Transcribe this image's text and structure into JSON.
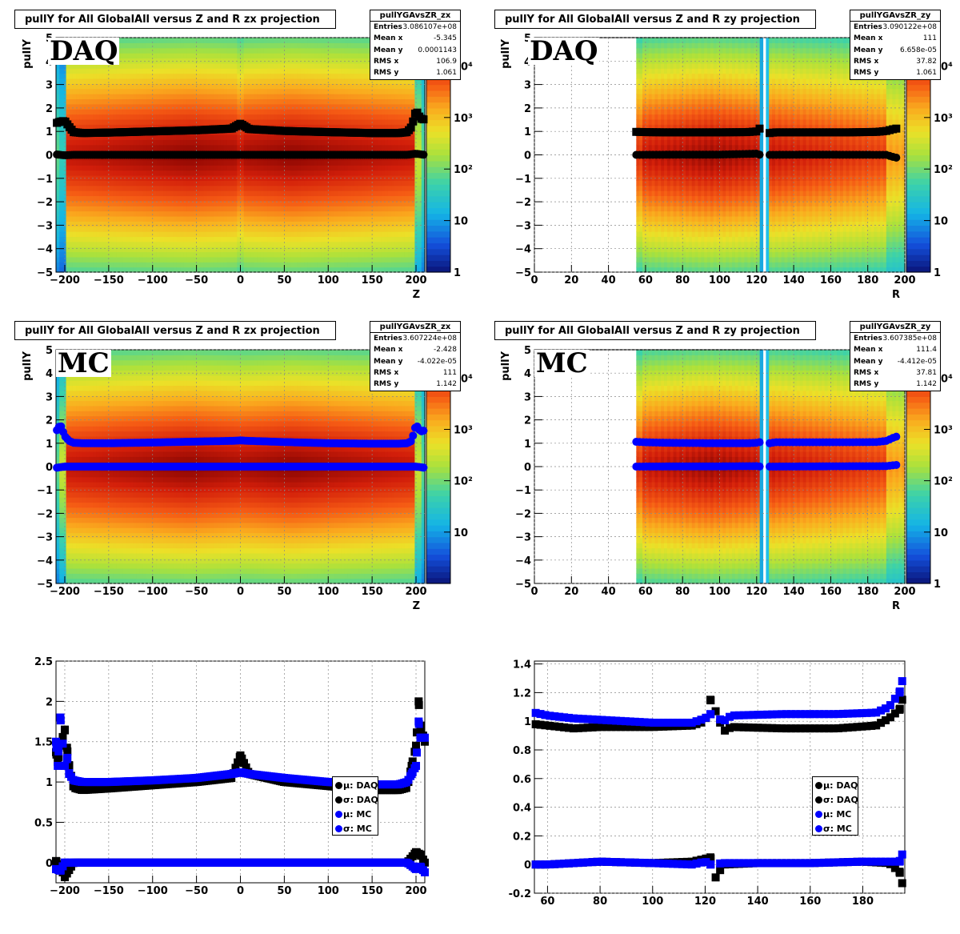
{
  "panels": {
    "p1": {
      "title": "pullY for All GlobalAll versus Z and R zx projection",
      "stats": {
        "name": "pullYGAvsZR_zx",
        "rows": [
          [
            "Entries",
            "3.086107e+08"
          ],
          [
            "Mean x",
            "-5.345"
          ],
          [
            "Mean y",
            "0.0001143"
          ],
          [
            "RMS x",
            "106.9"
          ],
          [
            "RMS y",
            "1.061"
          ]
        ]
      },
      "tag": "DAQ",
      "ylabel": "pullY",
      "xlabel": "Z"
    },
    "p2": {
      "title": "pullY for All GlobalAll versus Z and R zy projection",
      "stats": {
        "name": "pullYGAvsZR_zy",
        "rows": [
          [
            "Entries",
            "3.090122e+08"
          ],
          [
            "Mean x",
            "111"
          ],
          [
            "Mean y",
            "6.658e-05"
          ],
          [
            "RMS x",
            "37.82"
          ],
          [
            "RMS y",
            "1.061"
          ]
        ]
      },
      "tag": "DAQ",
      "ylabel": "pullY",
      "xlabel": "R"
    },
    "p3": {
      "title": "pullY for All GlobalAll versus Z and R zx projection",
      "stats": {
        "name": "pullYGAvsZR_zx",
        "rows": [
          [
            "Entries",
            "3.607224e+08"
          ],
          [
            "Mean x",
            "-2.428"
          ],
          [
            "Mean y",
            "-4.022e-05"
          ],
          [
            "RMS x",
            "111"
          ],
          [
            "RMS y",
            "1.142"
          ]
        ]
      },
      "tag": "MC",
      "ylabel": "pullY",
      "xlabel": "Z"
    },
    "p4": {
      "title": "pullY for All GlobalAll versus Z and R zy projection",
      "stats": {
        "name": "pullYGAvsZR_zy",
        "rows": [
          [
            "Entries",
            "3.607385e+08"
          ],
          [
            "Mean x",
            "111.4"
          ],
          [
            "Mean y",
            "-4.412e-05"
          ],
          [
            "RMS x",
            "37.81"
          ],
          [
            "RMS y",
            "1.142"
          ]
        ]
      },
      "tag": "MC",
      "ylabel": "pullY",
      "xlabel": "R"
    }
  },
  "legend": [
    "μ: DAQ",
    "σ: DAQ",
    "μ: MC",
    "σ: MC"
  ],
  "colors": {
    "daq": "#000000",
    "mc": "#0000ff"
  },
  "chart_data": [
    {
      "type": "heatmap",
      "id": "p1",
      "title": "pullY for All GlobalAll versus Z and R zx projection",
      "xlabel": "Z",
      "ylabel": "pullY",
      "xlim": [
        -210,
        210
      ],
      "ylim": [
        -5,
        5
      ],
      "x_ticks": [
        -200,
        -150,
        -100,
        -50,
        0,
        50,
        100,
        150,
        200
      ],
      "y_ticks": [
        -5,
        -4,
        -3,
        -2,
        -1,
        0,
        1,
        2,
        3,
        4,
        5
      ],
      "colorbar": {
        "scale": "log",
        "ticks": [
          "1",
          "10",
          "10²",
          "10³",
          "10⁴"
        ]
      },
      "sigma_x": [
        -210,
        -205,
        -200,
        -195,
        -190,
        -180,
        -150,
        -100,
        -50,
        -10,
        0,
        10,
        50,
        100,
        150,
        180,
        190,
        195,
        200,
        205,
        210
      ],
      "sigma_y": [
        1.35,
        1.42,
        1.45,
        1.2,
        0.97,
        0.93,
        0.95,
        1.0,
        1.05,
        1.12,
        1.33,
        1.1,
        1.02,
        0.97,
        0.93,
        0.93,
        0.97,
        1.2,
        1.9,
        1.55,
        1.5
      ],
      "mu_x": [
        -210,
        -200,
        -190,
        -100,
        0,
        100,
        190,
        200,
        210
      ],
      "mu_y": [
        0.02,
        -0.02,
        0.0,
        0.0,
        0.0,
        0.0,
        0.0,
        0.05,
        0.0
      ]
    },
    {
      "type": "heatmap",
      "id": "p2",
      "title": "pullY for All GlobalAll versus Z and R zy projection",
      "xlabel": "R",
      "ylabel": "pullY",
      "xlim": [
        0,
        200
      ],
      "ylim": [
        -5,
        5
      ],
      "x_ticks": [
        0,
        20,
        40,
        60,
        80,
        100,
        120,
        140,
        160,
        180,
        200
      ],
      "y_ticks": [
        -5,
        -4,
        -3,
        -2,
        -1,
        0,
        1,
        2,
        3,
        4,
        5
      ],
      "colorbar": {
        "scale": "log",
        "ticks": [
          "1",
          "10",
          "10²",
          "10³",
          "10⁴"
        ]
      },
      "sigma_x": [
        55,
        60,
        70,
        80,
        100,
        115,
        120,
        122,
        127,
        130,
        150,
        170,
        185,
        190,
        195
      ],
      "sigma_y": [
        0.98,
        0.97,
        0.96,
        0.96,
        0.96,
        0.97,
        1.0,
        1.15,
        0.93,
        0.96,
        0.96,
        0.96,
        0.98,
        1.02,
        1.12
      ],
      "mu_x": [
        55,
        80,
        100,
        120,
        122,
        127,
        150,
        190,
        195
      ],
      "mu_y": [
        0.0,
        0.01,
        0.01,
        0.05,
        0.0,
        0.0,
        0.01,
        0.0,
        -0.12
      ]
    },
    {
      "type": "heatmap",
      "id": "p3",
      "title": "pullY for All GlobalAll versus Z and R zx projection",
      "xlabel": "Z",
      "ylabel": "pullY",
      "xlim": [
        -210,
        210
      ],
      "ylim": [
        -5,
        5
      ],
      "x_ticks": [
        -200,
        -150,
        -100,
        -50,
        0,
        50,
        100,
        150,
        200
      ],
      "y_ticks": [
        -5,
        -4,
        -3,
        -2,
        -1,
        0,
        1,
        2,
        3,
        4,
        5
      ],
      "colorbar": {
        "scale": "log",
        "ticks": [
          "10",
          "10²",
          "10³",
          "10⁴"
        ]
      },
      "sigma_x": [
        -210,
        -205,
        -200,
        -195,
        -190,
        -180,
        -150,
        -100,
        -50,
        -10,
        0,
        10,
        50,
        100,
        150,
        180,
        190,
        195,
        200,
        205,
        210
      ],
      "sigma_y": [
        1.5,
        1.8,
        1.3,
        1.1,
        1.02,
        1.0,
        1.0,
        1.03,
        1.07,
        1.1,
        1.12,
        1.1,
        1.05,
        1.0,
        0.98,
        0.98,
        1.0,
        1.1,
        1.8,
        1.5,
        1.55
      ],
      "mu_x": [
        -210,
        -200,
        -190,
        -100,
        0,
        100,
        190,
        200,
        210
      ],
      "mu_y": [
        -0.05,
        0.0,
        0.0,
        0.0,
        0.0,
        0.0,
        0.0,
        0.0,
        -0.05
      ]
    },
    {
      "type": "heatmap",
      "id": "p4",
      "title": "pullY for All GlobalAll versus Z and R zy projection",
      "xlabel": "R",
      "ylabel": "pullY",
      "xlim": [
        0,
        200
      ],
      "ylim": [
        -5,
        5
      ],
      "x_ticks": [
        0,
        20,
        40,
        60,
        80,
        100,
        120,
        140,
        160,
        180,
        200
      ],
      "y_ticks": [
        -5,
        -4,
        -3,
        -2,
        -1,
        0,
        1,
        2,
        3,
        4,
        5
      ],
      "colorbar": {
        "scale": "log",
        "ticks": [
          "1",
          "10",
          "10²",
          "10³",
          "10⁴"
        ]
      },
      "sigma_x": [
        55,
        60,
        70,
        80,
        100,
        115,
        120,
        122,
        127,
        130,
        150,
        170,
        185,
        190,
        195
      ],
      "sigma_y": [
        1.06,
        1.04,
        1.02,
        1.01,
        1.0,
        1.0,
        1.02,
        1.05,
        1.0,
        1.04,
        1.04,
        1.04,
        1.05,
        1.1,
        1.28
      ],
      "mu_x": [
        55,
        80,
        100,
        120,
        122,
        127,
        150,
        190,
        195
      ],
      "mu_y": [
        0.0,
        0.01,
        0.01,
        0.02,
        0.0,
        0.0,
        0.01,
        0.02,
        0.07
      ]
    },
    {
      "type": "scatter",
      "id": "p5",
      "xlim": [
        -210,
        210
      ],
      "ylim": [
        -0.25,
        2.5
      ],
      "x_ticks": [
        -200,
        -150,
        -100,
        -50,
        0,
        50,
        100,
        150,
        200
      ],
      "y_ticks": [
        0,
        0.5,
        1,
        1.5,
        2,
        2.5
      ],
      "series": [
        {
          "name": "μ: DAQ",
          "x": [
            -210,
            -205,
            -200,
            -190,
            -100,
            0,
            100,
            190,
            200,
            205,
            210
          ],
          "y": [
            0.02,
            -0.05,
            -0.18,
            0.0,
            0.0,
            0.0,
            0.0,
            0.0,
            0.13,
            0.1,
            0.0
          ]
        },
        {
          "name": "σ: DAQ",
          "x": [
            -210,
            -208,
            -205,
            -200,
            -197,
            -195,
            -190,
            -180,
            -150,
            -100,
            -50,
            -10,
            0,
            10,
            50,
            100,
            150,
            180,
            190,
            195,
            200,
            203,
            205,
            210
          ],
          "y": [
            1.37,
            1.25,
            1.45,
            1.65,
            1.38,
            1.2,
            0.93,
            0.9,
            0.92,
            0.96,
            1.0,
            1.05,
            1.33,
            1.1,
            1.0,
            0.95,
            0.9,
            0.9,
            0.93,
            1.2,
            1.45,
            2.0,
            1.7,
            1.5
          ]
        },
        {
          "name": "μ: MC",
          "x": [
            -210,
            -205,
            -200,
            -190,
            -100,
            0,
            100,
            190,
            200,
            205,
            210
          ],
          "y": [
            -0.08,
            -0.1,
            0.0,
            0.0,
            0.0,
            0.0,
            0.0,
            0.0,
            -0.08,
            -0.05,
            -0.12
          ]
        },
        {
          "name": "σ: MC",
          "x": [
            -210,
            -208,
            -205,
            -200,
            -197,
            -195,
            -190,
            -180,
            -150,
            -100,
            -50,
            -10,
            0,
            10,
            50,
            100,
            150,
            180,
            190,
            195,
            200,
            203,
            205,
            210
          ],
          "y": [
            1.5,
            1.2,
            1.8,
            1.2,
            1.3,
            1.1,
            1.02,
            1.0,
            1.0,
            1.02,
            1.05,
            1.1,
            1.12,
            1.1,
            1.05,
            1.0,
            0.97,
            0.97,
            1.0,
            1.1,
            1.2,
            1.75,
            1.55,
            1.55
          ]
        }
      ]
    },
    {
      "type": "scatter",
      "id": "p6",
      "xlim": [
        55,
        196
      ],
      "ylim": [
        -0.2,
        1.42
      ],
      "x_ticks": [
        60,
        80,
        100,
        120,
        140,
        160,
        180
      ],
      "y_ticks": [
        -0.2,
        0,
        0.2,
        0.4,
        0.6,
        0.8,
        1,
        1.2,
        1.4
      ],
      "series": [
        {
          "name": "μ: DAQ",
          "x": [
            55,
            60,
            80,
            100,
            115,
            120,
            122,
            124,
            127,
            140,
            160,
            180,
            190,
            194,
            195
          ],
          "y": [
            0.0,
            0.0,
            0.02,
            0.01,
            0.02,
            0.04,
            0.05,
            -0.09,
            0.0,
            0.01,
            0.01,
            0.02,
            0.01,
            -0.05,
            -0.13
          ]
        },
        {
          "name": "σ: DAQ",
          "x": [
            55,
            60,
            70,
            80,
            100,
            115,
            120,
            122,
            124,
            127,
            130,
            150,
            170,
            185,
            190,
            194,
            195
          ],
          "y": [
            0.98,
            0.97,
            0.95,
            0.96,
            0.96,
            0.97,
            1.0,
            1.15,
            1.07,
            0.93,
            0.96,
            0.95,
            0.95,
            0.97,
            1.02,
            1.08,
            1.15
          ]
        },
        {
          "name": "μ: MC",
          "x": [
            55,
            60,
            80,
            100,
            115,
            120,
            122,
            127,
            140,
            160,
            180,
            190,
            194,
            195
          ],
          "y": [
            0.0,
            0.0,
            0.02,
            0.01,
            0.0,
            0.02,
            0.0,
            0.01,
            0.01,
            0.01,
            0.02,
            0.02,
            0.02,
            0.07
          ]
        },
        {
          "name": "σ: MC",
          "x": [
            55,
            60,
            70,
            80,
            100,
            115,
            120,
            122,
            127,
            130,
            150,
            170,
            185,
            190,
            194,
            195
          ],
          "y": [
            1.06,
            1.04,
            1.02,
            1.01,
            0.99,
            0.99,
            1.02,
            1.05,
            1.0,
            1.04,
            1.05,
            1.05,
            1.06,
            1.1,
            1.2,
            1.28
          ]
        }
      ]
    }
  ]
}
